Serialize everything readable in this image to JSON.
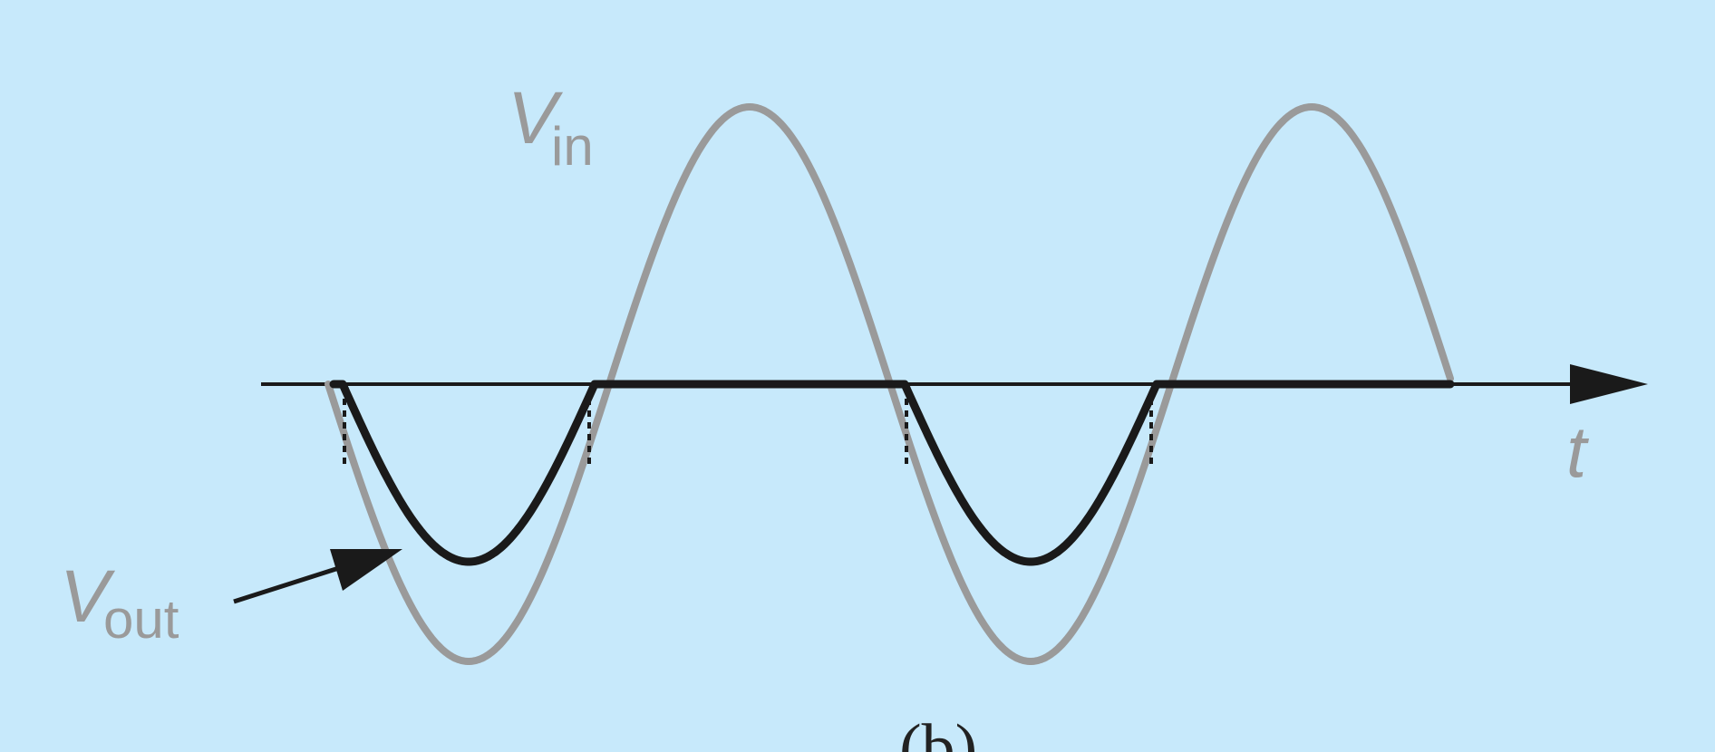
{
  "diagram": {
    "labels": {
      "vin_main": "V",
      "vin_sub": "in",
      "vout_main": "V",
      "vout_sub": "out",
      "time_axis": "t",
      "caption": "(b)"
    },
    "colors": {
      "background": "#c7e9fb",
      "input_wave": "#9a9a9a",
      "output_wave": "#1a1a1a",
      "axis": "#1a1a1a",
      "label_text": "#9a9a9a"
    }
  }
}
